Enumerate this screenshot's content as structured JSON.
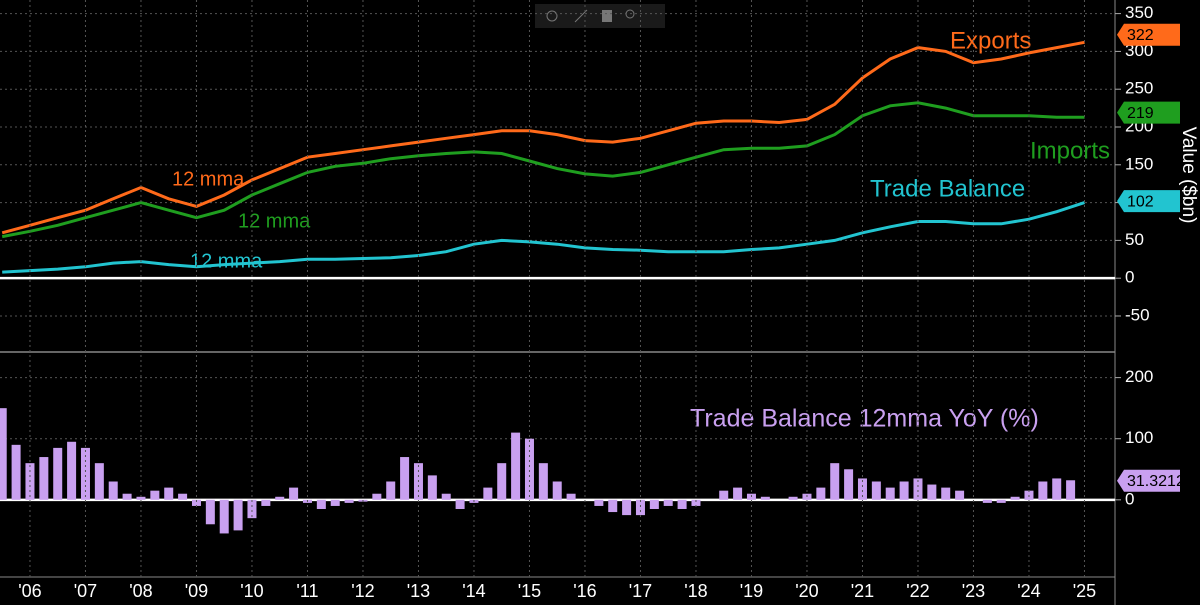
{
  "chart_data": [
    {
      "type": "line",
      "axis_label": "Value ($bn)",
      "x": [
        2006.0,
        2006.5,
        2007.0,
        2007.5,
        2008.0,
        2008.5,
        2009.0,
        2009.5,
        2010.0,
        2010.5,
        2011.0,
        2011.5,
        2012.0,
        2012.5,
        2013.0,
        2013.5,
        2014.0,
        2014.5,
        2015.0,
        2015.5,
        2016.0,
        2016.5,
        2017.0,
        2017.5,
        2018.0,
        2018.5,
        2019.0,
        2019.5,
        2020.0,
        2020.5,
        2021.0,
        2021.5,
        2022.0,
        2022.5,
        2023.0,
        2023.5,
        2024.0,
        2024.5,
        2025.0,
        2025.5
      ],
      "xlim": [
        2005.96,
        2026.05
      ],
      "ylim": [
        -95,
        368
      ],
      "yticks": [
        -50,
        0,
        50,
        100,
        150,
        200,
        250,
        300,
        350
      ],
      "grid": true,
      "zero_line": true,
      "annotations": [
        "12 mma",
        "12 mma",
        "12 mma"
      ],
      "series": [
        {
          "name": "Exports",
          "color": "#ff6a1a",
          "last_value": 322,
          "values": [
            60,
            70,
            80,
            90,
            105,
            120,
            105,
            95,
            110,
            130,
            145,
            160,
            165,
            170,
            175,
            180,
            185,
            190,
            195,
            195,
            190,
            182,
            180,
            185,
            195,
            205,
            208,
            208,
            206,
            210,
            230,
            265,
            290,
            305,
            300,
            285,
            290,
            298,
            305,
            312
          ]
        },
        {
          "name": "Imports",
          "color": "#1f9e1f",
          "last_value": 219,
          "values": [
            55,
            62,
            70,
            80,
            90,
            100,
            90,
            80,
            90,
            110,
            125,
            140,
            148,
            152,
            158,
            162,
            165,
            167,
            165,
            155,
            145,
            138,
            135,
            140,
            150,
            160,
            170,
            172,
            172,
            175,
            190,
            215,
            228,
            232,
            225,
            215,
            215,
            215,
            213,
            213
          ]
        },
        {
          "name": "Trade Balance",
          "color": "#22c4d0",
          "last_value": 102,
          "values": [
            8,
            10,
            12,
            15,
            20,
            22,
            18,
            15,
            18,
            20,
            22,
            25,
            25,
            26,
            27,
            30,
            35,
            45,
            50,
            48,
            45,
            40,
            38,
            37,
            35,
            35,
            35,
            38,
            40,
            45,
            50,
            60,
            68,
            75,
            75,
            72,
            72,
            78,
            88,
            100
          ]
        }
      ]
    },
    {
      "type": "bar",
      "title": "Trade Balance 12mma YoY (%)",
      "color": "#c9a0f0",
      "last_value": 31.3212,
      "x": [
        2006.0,
        2006.25,
        2006.5,
        2006.75,
        2007.0,
        2007.25,
        2007.5,
        2007.75,
        2008.0,
        2008.25,
        2008.5,
        2008.75,
        2009.0,
        2009.25,
        2009.5,
        2009.75,
        2010.0,
        2010.25,
        2010.5,
        2010.75,
        2011.0,
        2011.25,
        2011.5,
        2011.75,
        2012.0,
        2012.25,
        2012.5,
        2012.75,
        2013.0,
        2013.25,
        2013.5,
        2013.75,
        2014.0,
        2014.25,
        2014.5,
        2014.75,
        2015.0,
        2015.25,
        2015.5,
        2015.75,
        2016.0,
        2016.25,
        2016.5,
        2016.75,
        2017.0,
        2017.25,
        2017.5,
        2017.75,
        2018.0,
        2018.25,
        2018.5,
        2018.75,
        2019.0,
        2019.25,
        2019.5,
        2019.75,
        2020.0,
        2020.25,
        2020.5,
        2020.75,
        2021.0,
        2021.25,
        2021.5,
        2021.75,
        2022.0,
        2022.25,
        2022.5,
        2022.75,
        2023.0,
        2023.25,
        2023.5,
        2023.75,
        2024.0,
        2024.25,
        2024.5,
        2024.75,
        2025.0,
        2025.25
      ],
      "values": [
        150,
        90,
        60,
        70,
        85,
        95,
        85,
        60,
        30,
        10,
        5,
        15,
        20,
        10,
        -10,
        -40,
        -55,
        -50,
        -30,
        -10,
        5,
        20,
        -5,
        -15,
        -10,
        -5,
        -3,
        10,
        30,
        70,
        60,
        40,
        10,
        -15,
        -5,
        20,
        60,
        110,
        100,
        60,
        30,
        10,
        0,
        -10,
        -20,
        -25,
        -25,
        -15,
        -10,
        -15,
        -10,
        0,
        15,
        20,
        10,
        5,
        0,
        5,
        10,
        20,
        60,
        50,
        35,
        30,
        20,
        30,
        35,
        25,
        20,
        15,
        0,
        -5,
        -5,
        5,
        15,
        30,
        35,
        32
      ],
      "xlim": [
        2005.96,
        2026.05
      ],
      "ylim": [
        -123,
        237
      ],
      "yticks": [
        0,
        100,
        200
      ],
      "xticks": [
        {
          "value": 2006.5,
          "label": "'06"
        },
        {
          "value": 2007.5,
          "label": "'07"
        },
        {
          "value": 2008.5,
          "label": "'08"
        },
        {
          "value": 2009.5,
          "label": "'09"
        },
        {
          "value": 2010.5,
          "label": "'10"
        },
        {
          "value": 2011.5,
          "label": "'11"
        },
        {
          "value": 2012.5,
          "label": "'12"
        },
        {
          "value": 2013.5,
          "label": "'13"
        },
        {
          "value": 2014.5,
          "label": "'14"
        },
        {
          "value": 2015.5,
          "label": "'15"
        },
        {
          "value": 2016.5,
          "label": "'16"
        },
        {
          "value": 2017.5,
          "label": "'17"
        },
        {
          "value": 2018.5,
          "label": "'18"
        },
        {
          "value": 2019.5,
          "label": "'19"
        },
        {
          "value": 2020.5,
          "label": "'20"
        },
        {
          "value": 2021.5,
          "label": "'21"
        },
        {
          "value": 2022.5,
          "label": "'22"
        },
        {
          "value": 2023.5,
          "label": "'23"
        },
        {
          "value": 2024.5,
          "label": "'24"
        },
        {
          "value": 2025.5,
          "label": "'25"
        }
      ],
      "grid": true,
      "zero_line": true
    }
  ]
}
